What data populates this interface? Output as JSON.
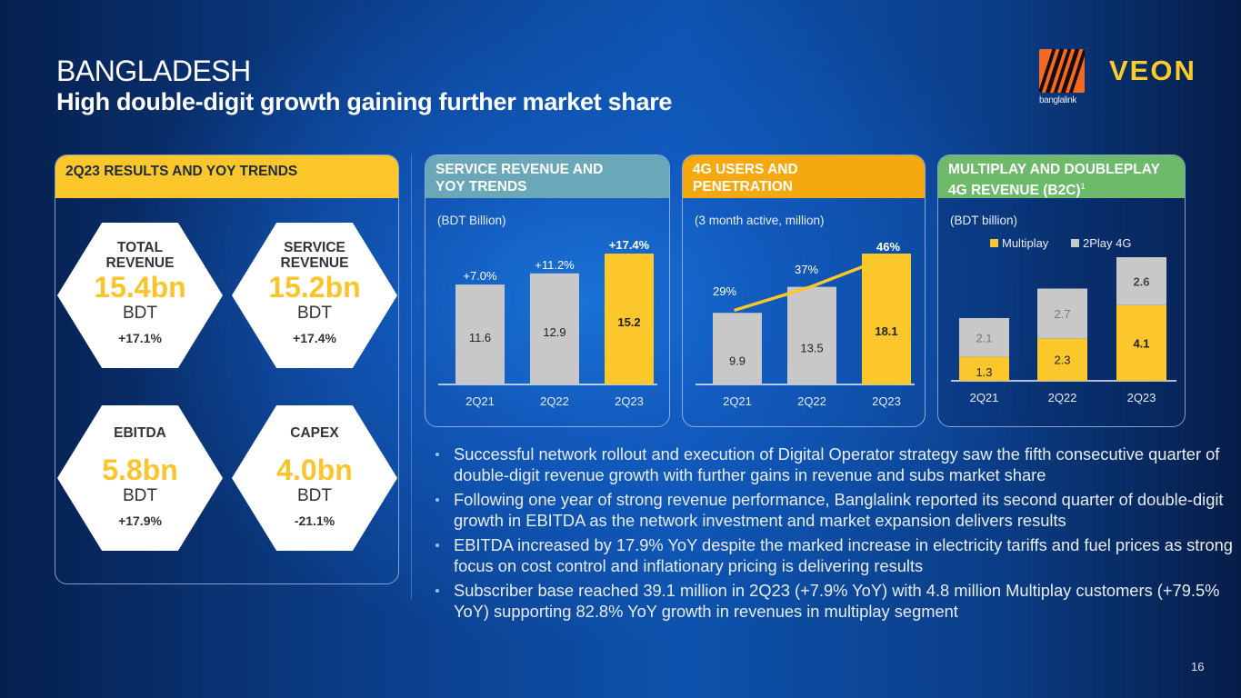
{
  "header": {
    "title": "BANGLADESH",
    "subtitle": "High double-digit growth gaining further market share"
  },
  "logos": {
    "operator_logo_text": "banglalink",
    "brand": "VEON",
    "brand_color": "#fbcb2a",
    "operator_color": "#f26a21"
  },
  "results_panel": {
    "header": "2Q23 RESULTS AND YOY TRENDS",
    "kpis": [
      {
        "title_line1": "TOTAL",
        "title_line2": "REVENUE",
        "value": "15.4bn",
        "unit": "BDT",
        "change": "+17.1%"
      },
      {
        "title_line1": "SERVICE",
        "title_line2": "REVENUE",
        "value": "15.2bn",
        "unit": "BDT",
        "change": "+17.4%"
      },
      {
        "title_line1": "EBITDA",
        "title_line2": "",
        "value": "5.8bn",
        "unit": "BDT",
        "change": "+17.9%"
      },
      {
        "title_line1": "CAPEX",
        "title_line2": "",
        "value": "4.0bn",
        "unit": "BDT",
        "change": "-21.1%"
      }
    ]
  },
  "colors": {
    "highlight": "#fbc72a",
    "grey_bar": "#c8c8c8",
    "svc_header": "#6aa7b9",
    "g4_header": "#f5a90e",
    "mp_header": "#6cba6a"
  },
  "chart_data": [
    {
      "id": "service_revenue",
      "type": "bar",
      "title_line1": "SERVICE REVENUE AND",
      "title_line2": "YOY TRENDS",
      "unit_label": "(BDT Billion)",
      "categories": [
        "2Q21",
        "2Q22",
        "2Q23"
      ],
      "values": [
        11.6,
        12.9,
        15.2
      ],
      "value_labels": [
        "11.6",
        "12.9",
        "15.2"
      ],
      "growth_labels": [
        "+7.0%",
        "+11.2%",
        "+17.4%"
      ],
      "highlight_index": 2,
      "ylim": [
        0,
        15.2
      ]
    },
    {
      "id": "4g_users",
      "type": "bar",
      "title_line1": "4G USERS AND",
      "title_line2": "PENETRATION",
      "unit_label": "(3 month active, million)",
      "categories": [
        "2Q21",
        "2Q22",
        "2Q23"
      ],
      "values": [
        9.9,
        13.5,
        18.1
      ],
      "value_labels": [
        "9.9",
        "13.5",
        "18.1"
      ],
      "line_series": {
        "name": "Penetration",
        "values": [
          29,
          37,
          46
        ],
        "labels": [
          "29%",
          "37%",
          "46%"
        ]
      },
      "highlight_index": 2,
      "ylim": [
        0,
        18.1
      ]
    },
    {
      "id": "multiplay",
      "type": "bar",
      "stacked": true,
      "title_line1": "MULTIPLAY AND DOUBLEPLAY",
      "title_line2": "4G REVENUE (B2C)",
      "title_footnote": "1",
      "unit_label": "(BDT billion)",
      "categories": [
        "2Q21",
        "2Q22",
        "2Q23"
      ],
      "series": [
        {
          "name": "Multiplay",
          "values": [
            1.3,
            2.3,
            4.1
          ],
          "labels": [
            "1.3",
            "2.3",
            "4.1"
          ]
        },
        {
          "name": "2Play 4G",
          "values": [
            2.1,
            2.7,
            2.6
          ],
          "labels": [
            "2.1",
            "2.7",
            "2.6"
          ]
        }
      ],
      "legend": [
        "Multiplay",
        "2Play 4G"
      ],
      "ylim": [
        0,
        6.7
      ]
    }
  ],
  "bullets": [
    "Successful network rollout and execution of Digital Operator strategy saw the fifth consecutive quarter of double-digit revenue growth with further gains in revenue and subs market share",
    "Following one year of strong revenue performance, Banglalink reported its second quarter of double-digit growth in EBITDA as the network investment and market expansion delivers results",
    "EBITDA increased by 17.9% YoY despite the marked increase in electricity tariffs and fuel prices as strong focus on cost control and inflationary pricing is delivering results",
    "Subscriber base reached 39.1 million in 2Q23 (+7.9% YoY) with 4.8 million Multiplay customers (+79.5% YoY) supporting 82.8% YoY growth in revenues in multiplay segment"
  ],
  "page_number": "16"
}
